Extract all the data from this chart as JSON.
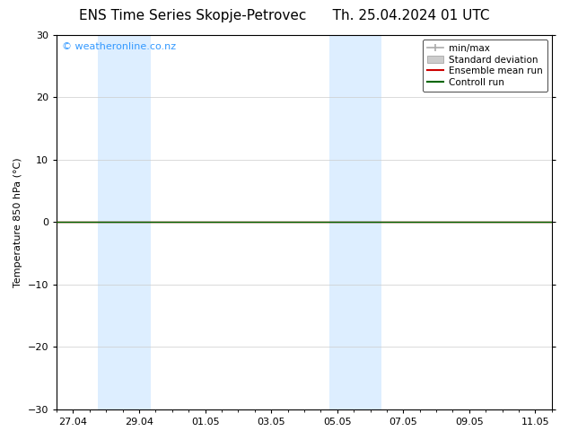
{
  "title_left": "ENS Time Series Skopje-Petrovec",
  "title_right": "Th. 25.04.2024 01 UTC",
  "ylabel": "Temperature 850 hPa (°C)",
  "watermark": "© weatheronline.co.nz",
  "watermark_color": "#3399ff",
  "ylim": [
    -30,
    30
  ],
  "yticks": [
    -30,
    -20,
    -10,
    0,
    10,
    20,
    30
  ],
  "xtick_labels": [
    "27.04",
    "29.04",
    "01.05",
    "03.05",
    "05.05",
    "07.05",
    "09.05",
    "11.05"
  ],
  "shaded_color": "#ddeeff",
  "zero_line_color": "#333333",
  "ensemble_mean_color": "#cc0000",
  "control_run_color": "#006600",
  "bg_color": "#ffffff",
  "legend_min_max_color": "#aaaaaa",
  "legend_std_color": "#cccccc",
  "font_size_title": 11,
  "font_size_tick": 8,
  "font_size_ylabel": 8,
  "font_size_legend": 7.5,
  "font_size_watermark": 8
}
